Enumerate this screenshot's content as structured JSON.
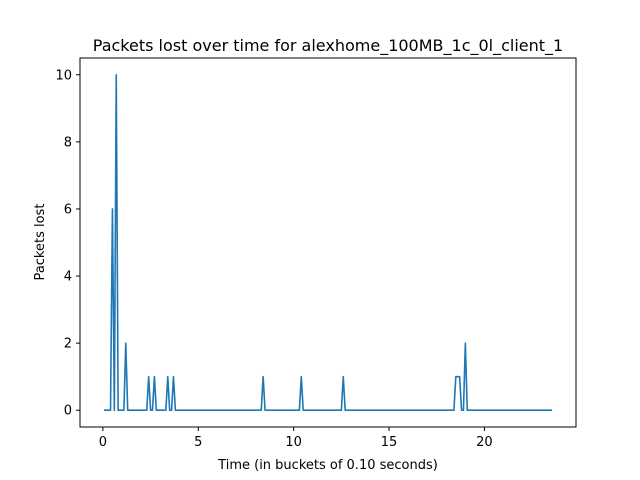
{
  "chart_data": {
    "type": "line",
    "title": "Packets lost over time for alexhome_100MB_1c_0l_client_1",
    "xlabel": "Time (in buckets of 0.10 seconds)",
    "ylabel": "Packets lost",
    "xlim": [
      -1.2,
      24.8
    ],
    "ylim": [
      -0.5,
      10.5
    ],
    "x_ticks": [
      0,
      5,
      10,
      15,
      20
    ],
    "y_ticks": [
      0,
      2,
      4,
      6,
      8,
      10
    ],
    "grid": false,
    "legend": "none",
    "series": [
      {
        "color": "#1f77b4",
        "x": [
          0.1,
          0.2,
          0.3,
          0.4,
          0.5,
          0.6,
          0.7,
          0.8,
          0.9,
          1.0,
          1.1,
          1.2,
          1.3,
          1.4,
          1.5,
          1.6,
          1.7,
          1.8,
          1.9,
          2.0,
          2.1,
          2.2,
          2.3,
          2.4,
          2.5,
          2.6,
          2.7,
          2.8,
          2.9,
          3.0,
          3.1,
          3.2,
          3.3,
          3.4,
          3.5,
          3.6,
          3.7,
          3.8,
          3.9,
          4.0,
          8.2,
          8.3,
          8.4,
          8.5,
          8.6,
          10.2,
          10.3,
          10.4,
          10.5,
          10.6,
          12.4,
          12.5,
          12.6,
          12.7,
          12.8,
          18.3,
          18.4,
          18.5,
          18.6,
          18.7,
          18.8,
          18.9,
          19.0,
          19.1,
          19.2,
          23.5
        ],
        "values": [
          0,
          0,
          0,
          0,
          6,
          0,
          10,
          0,
          0,
          0,
          0,
          2,
          0,
          0,
          0,
          0,
          0,
          0,
          0,
          0,
          0,
          0,
          0,
          1,
          0,
          0,
          1,
          0,
          0,
          0,
          0,
          0,
          0,
          1,
          0,
          0,
          1,
          0,
          0,
          0,
          0,
          0,
          1,
          0,
          0,
          0,
          0,
          1,
          0,
          0,
          0,
          0,
          1,
          0,
          0,
          0,
          0,
          1,
          1,
          1,
          0,
          0,
          2,
          0,
          0,
          0
        ]
      }
    ]
  }
}
